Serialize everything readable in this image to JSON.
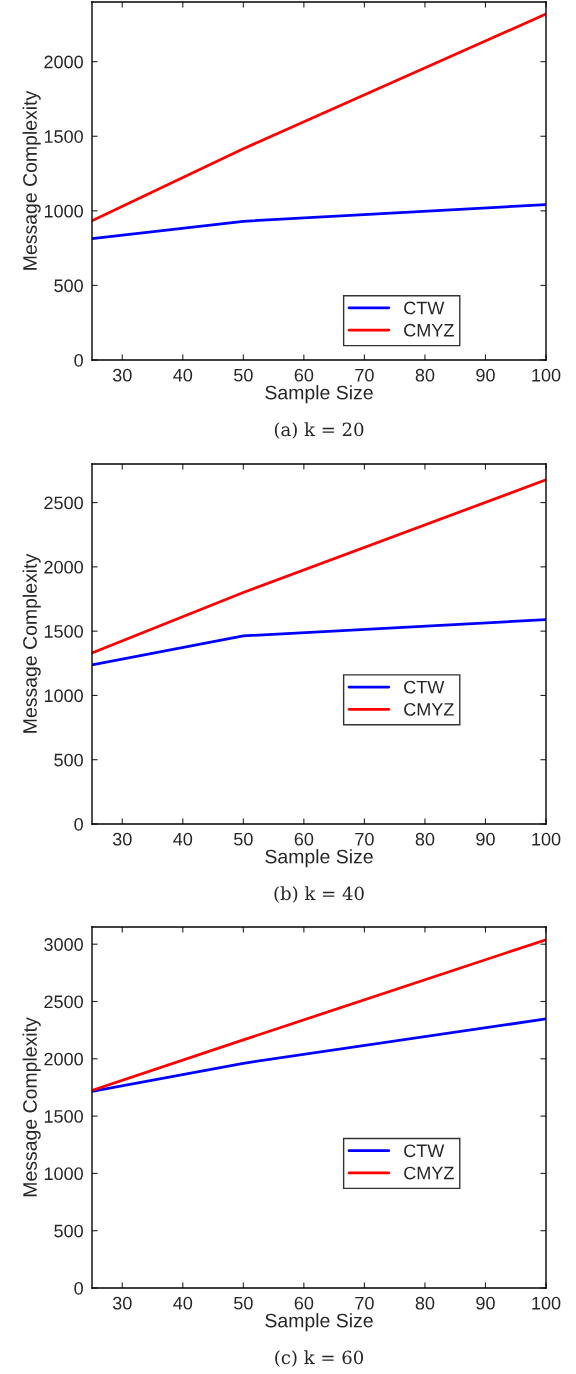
{
  "chart_data": [
    {
      "type": "line",
      "title": "(a) k = 20",
      "xlabel": "Sample Size",
      "ylabel": "Message Complexity",
      "x": [
        25,
        50,
        100
      ],
      "xlim": [
        25,
        100
      ],
      "xticks": [
        30,
        40,
        50,
        60,
        70,
        80,
        90,
        100
      ],
      "ylim": [
        0,
        2400
      ],
      "yticks": [
        0,
        500,
        1000,
        1500,
        2000
      ],
      "grid": false,
      "legend": "bottom right",
      "series": [
        {
          "name": "CTW",
          "color": "#0000ff",
          "values": [
            813,
            930,
            1042
          ]
        },
        {
          "name": "CMYZ",
          "color": "#ff0000",
          "values": [
            933,
            1416,
            2319
          ]
        }
      ]
    },
    {
      "type": "line",
      "title": "(b) k = 40",
      "xlabel": "Sample Size",
      "ylabel": "Message Complexity",
      "x": [
        25,
        50,
        100
      ],
      "xlim": [
        25,
        100
      ],
      "xticks": [
        30,
        40,
        50,
        60,
        70,
        80,
        90,
        100
      ],
      "ylim": [
        0,
        2800
      ],
      "yticks": [
        0,
        500,
        1000,
        1500,
        2000,
        2500
      ],
      "grid": false,
      "legend": "right",
      "series": [
        {
          "name": "CTW",
          "color": "#0000ff",
          "values": [
            1237,
            1463,
            1589
          ]
        },
        {
          "name": "CMYZ",
          "color": "#ff0000",
          "values": [
            1331,
            1800,
            2677
          ]
        }
      ]
    },
    {
      "type": "line",
      "title": "(c) k = 60",
      "xlabel": "Sample Size",
      "ylabel": "Message Complexity",
      "x": [
        25,
        50,
        100
      ],
      "xlim": [
        25,
        100
      ],
      "xticks": [
        30,
        40,
        50,
        60,
        70,
        80,
        90,
        100
      ],
      "ylim": [
        0,
        3150
      ],
      "yticks": [
        0,
        500,
        1000,
        1500,
        2000,
        2500,
        3000
      ],
      "grid": false,
      "legend": "right",
      "series": [
        {
          "name": "CTW",
          "color": "#0000ff",
          "values": [
            1716,
            1961,
            2348
          ]
        },
        {
          "name": "CMYZ",
          "color": "#ff0000",
          "values": [
            1723,
            2165,
            3039
          ]
        }
      ]
    }
  ]
}
